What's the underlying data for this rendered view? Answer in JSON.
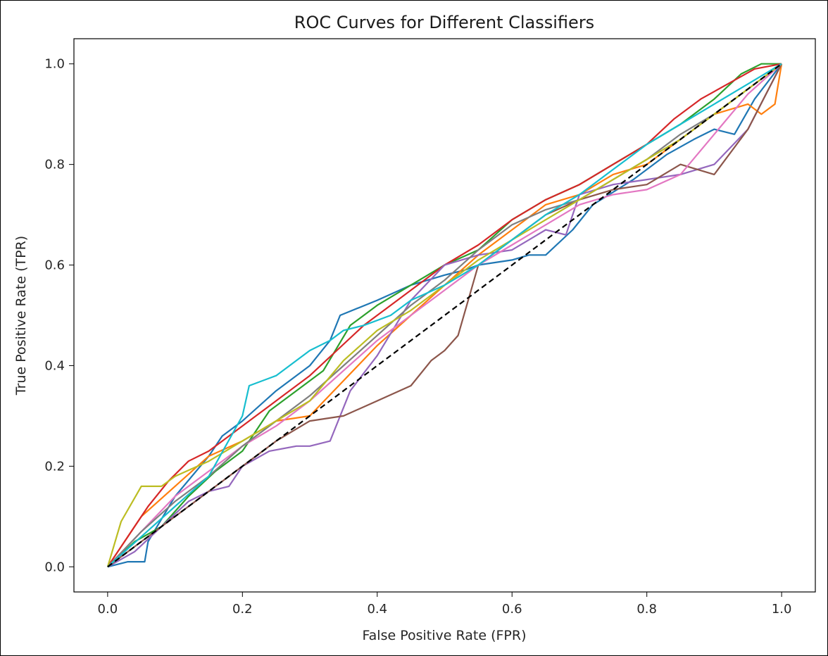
{
  "chart_data": {
    "type": "line",
    "title": "ROC Curves for Different Classifiers",
    "xlabel": "False Positive Rate (FPR)",
    "ylabel": "True Positive Rate (TPR)",
    "xlim": [
      -0.05,
      1.05
    ],
    "ylim": [
      -0.05,
      1.05
    ],
    "x_ticks": [
      "0.0",
      "0.2",
      "0.4",
      "0.6",
      "0.8",
      "1.0"
    ],
    "y_ticks": [
      "0.0",
      "0.2",
      "0.4",
      "0.6",
      "0.8",
      "1.0"
    ],
    "grid": false,
    "legend": "none",
    "diagonal": {
      "x": [
        0,
        1
      ],
      "y": [
        0,
        1
      ],
      "color": "#000000",
      "style": "dashed"
    },
    "series": [
      {
        "color": "#1f77b4",
        "x": [
          0,
          0.03,
          0.055,
          0.06,
          0.1,
          0.15,
          0.17,
          0.2,
          0.25,
          0.3,
          0.33,
          0.345,
          0.4,
          0.45,
          0.5,
          0.53,
          0.55,
          0.6,
          0.625,
          0.65,
          0.69,
          0.72,
          0.78,
          0.83,
          0.87,
          0.9,
          0.93,
          0.96,
          1.0
        ],
        "y": [
          0,
          0.01,
          0.01,
          0.05,
          0.14,
          0.22,
          0.26,
          0.29,
          0.35,
          0.4,
          0.45,
          0.5,
          0.53,
          0.56,
          0.58,
          0.59,
          0.6,
          0.61,
          0.62,
          0.62,
          0.67,
          0.72,
          0.77,
          0.82,
          0.85,
          0.87,
          0.86,
          0.93,
          1.0
        ]
      },
      {
        "color": "#ff7f0e",
        "x": [
          0,
          0.05,
          0.1,
          0.15,
          0.2,
          0.25,
          0.3,
          0.35,
          0.4,
          0.45,
          0.5,
          0.55,
          0.6,
          0.65,
          0.7,
          0.75,
          0.8,
          0.85,
          0.9,
          0.95,
          0.97,
          0.99,
          1.0
        ],
        "y": [
          0,
          0.1,
          0.16,
          0.22,
          0.25,
          0.29,
          0.3,
          0.37,
          0.44,
          0.5,
          0.56,
          0.62,
          0.67,
          0.72,
          0.74,
          0.78,
          0.8,
          0.85,
          0.9,
          0.92,
          0.9,
          0.92,
          1.0
        ]
      },
      {
        "color": "#2ca02c",
        "x": [
          0,
          0.04,
          0.08,
          0.12,
          0.16,
          0.2,
          0.24,
          0.28,
          0.32,
          0.36,
          0.4,
          0.45,
          0.5,
          0.55,
          0.6,
          0.65,
          0.7,
          0.75,
          0.8,
          0.85,
          0.9,
          0.94,
          0.97,
          1.0
        ],
        "y": [
          0,
          0.05,
          0.08,
          0.14,
          0.19,
          0.23,
          0.31,
          0.35,
          0.39,
          0.48,
          0.52,
          0.56,
          0.6,
          0.63,
          0.69,
          0.73,
          0.76,
          0.8,
          0.84,
          0.88,
          0.93,
          0.98,
          1.0,
          1.0
        ]
      },
      {
        "color": "#d62728",
        "x": [
          0,
          0.03,
          0.06,
          0.09,
          0.12,
          0.15,
          0.18,
          0.22,
          0.26,
          0.3,
          0.34,
          0.38,
          0.42,
          0.46,
          0.5,
          0.55,
          0.6,
          0.65,
          0.7,
          0.75,
          0.8,
          0.84,
          0.88,
          0.92,
          0.96,
          1.0
        ],
        "y": [
          0,
          0.06,
          0.12,
          0.17,
          0.21,
          0.23,
          0.26,
          0.3,
          0.34,
          0.38,
          0.43,
          0.48,
          0.52,
          0.56,
          0.6,
          0.64,
          0.69,
          0.73,
          0.76,
          0.8,
          0.84,
          0.89,
          0.93,
          0.96,
          0.99,
          1.0
        ]
      },
      {
        "color": "#9467bd",
        "x": [
          0,
          0.04,
          0.08,
          0.12,
          0.15,
          0.18,
          0.2,
          0.24,
          0.28,
          0.3,
          0.33,
          0.36,
          0.4,
          0.45,
          0.5,
          0.55,
          0.6,
          0.65,
          0.68,
          0.7,
          0.75,
          0.8,
          0.85,
          0.9,
          0.95,
          1.0
        ],
        "y": [
          0,
          0.03,
          0.08,
          0.13,
          0.15,
          0.16,
          0.2,
          0.23,
          0.24,
          0.24,
          0.25,
          0.35,
          0.42,
          0.53,
          0.6,
          0.62,
          0.63,
          0.67,
          0.66,
          0.74,
          0.76,
          0.77,
          0.78,
          0.8,
          0.87,
          1.0
        ]
      },
      {
        "color": "#8c564b",
        "x": [
          0,
          0.05,
          0.1,
          0.15,
          0.2,
          0.25,
          0.3,
          0.35,
          0.4,
          0.45,
          0.48,
          0.5,
          0.52,
          0.55,
          0.6,
          0.65,
          0.7,
          0.75,
          0.8,
          0.85,
          0.9,
          0.95,
          1.0
        ],
        "y": [
          0,
          0.05,
          0.1,
          0.15,
          0.2,
          0.25,
          0.29,
          0.3,
          0.33,
          0.36,
          0.41,
          0.43,
          0.46,
          0.6,
          0.65,
          0.7,
          0.73,
          0.75,
          0.76,
          0.8,
          0.78,
          0.87,
          1.0
        ]
      },
      {
        "color": "#e377c2",
        "x": [
          0,
          0.05,
          0.1,
          0.15,
          0.2,
          0.25,
          0.3,
          0.35,
          0.4,
          0.45,
          0.5,
          0.55,
          0.6,
          0.65,
          0.7,
          0.75,
          0.8,
          0.85,
          0.9,
          0.95,
          1.0
        ],
        "y": [
          0,
          0.07,
          0.14,
          0.19,
          0.24,
          0.28,
          0.33,
          0.39,
          0.45,
          0.5,
          0.55,
          0.6,
          0.64,
          0.68,
          0.72,
          0.74,
          0.75,
          0.78,
          0.86,
          0.94,
          1.0
        ]
      },
      {
        "color": "#7f7f7f",
        "x": [
          0,
          0.05,
          0.1,
          0.15,
          0.2,
          0.25,
          0.3,
          0.35,
          0.4,
          0.45,
          0.5,
          0.55,
          0.6,
          0.65,
          0.7,
          0.75,
          0.8,
          0.85,
          0.9,
          0.95,
          1.0
        ],
        "y": [
          0,
          0.07,
          0.13,
          0.18,
          0.24,
          0.29,
          0.34,
          0.4,
          0.46,
          0.52,
          0.57,
          0.63,
          0.68,
          0.71,
          0.73,
          0.77,
          0.81,
          0.86,
          0.9,
          0.95,
          1.0
        ]
      },
      {
        "color": "#bcbd22",
        "x": [
          0,
          0.02,
          0.05,
          0.08,
          0.1,
          0.15,
          0.2,
          0.25,
          0.3,
          0.35,
          0.4,
          0.45,
          0.5,
          0.55,
          0.6,
          0.65,
          0.7,
          0.75,
          0.8,
          0.85,
          0.9,
          0.95,
          1.0
        ],
        "y": [
          0,
          0.09,
          0.16,
          0.16,
          0.18,
          0.21,
          0.25,
          0.29,
          0.33,
          0.41,
          0.47,
          0.51,
          0.56,
          0.61,
          0.65,
          0.69,
          0.73,
          0.77,
          0.81,
          0.85,
          0.9,
          0.95,
          1.0
        ]
      },
      {
        "color": "#17becf",
        "x": [
          0,
          0.05,
          0.1,
          0.15,
          0.2,
          0.21,
          0.25,
          0.3,
          0.33,
          0.35,
          0.38,
          0.42,
          0.45,
          0.5,
          0.55,
          0.6,
          0.65,
          0.7,
          0.75,
          0.8,
          0.85,
          0.9,
          0.95,
          1.0
        ],
        "y": [
          0,
          0.06,
          0.12,
          0.18,
          0.3,
          0.36,
          0.38,
          0.43,
          0.45,
          0.47,
          0.48,
          0.5,
          0.53,
          0.56,
          0.6,
          0.65,
          0.7,
          0.74,
          0.79,
          0.84,
          0.88,
          0.92,
          0.96,
          1.0
        ]
      }
    ]
  }
}
